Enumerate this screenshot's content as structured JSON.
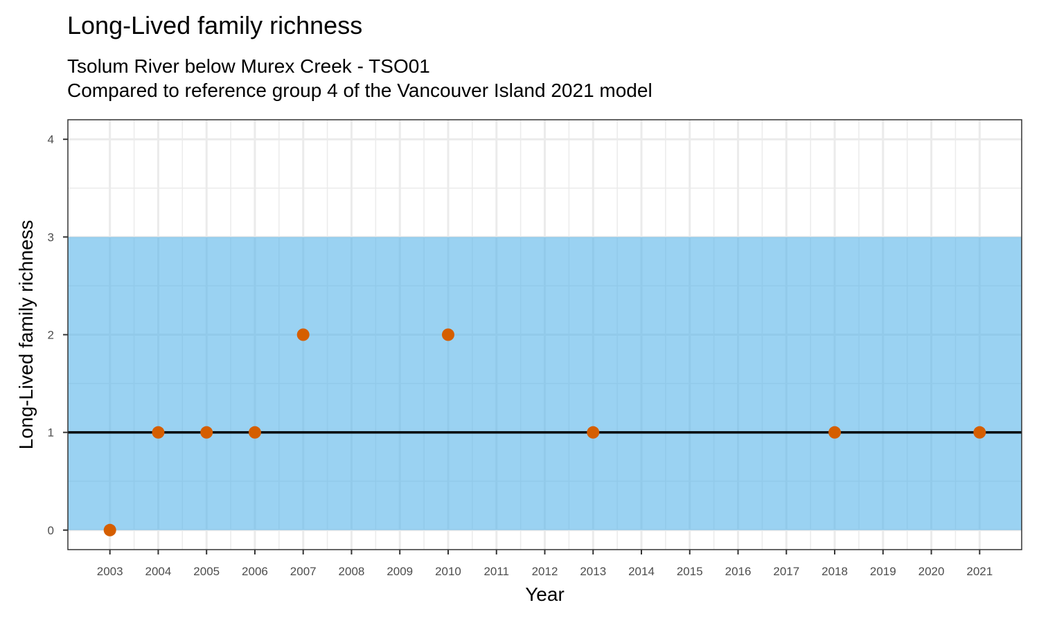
{
  "title": "Long-Lived family richness",
  "subtitle_line1": "Tsolum River below Murex Creek - TSO01",
  "subtitle_line2": "Compared to reference group 4 of the Vancouver Island 2021 model",
  "colors": {
    "band_fill": "#56B4E9",
    "point_fill": "#D55E00",
    "reference_line": "#000000",
    "grid": "#ebebeb",
    "panel_border": "#333333"
  },
  "chart_data": {
    "type": "scatter",
    "title": "Long-Lived family richness",
    "xlabel": "Year",
    "ylabel": "Long-Lived family richness",
    "x_ticks": [
      "2003",
      "2004",
      "2005",
      "2006",
      "2007",
      "2008",
      "2009",
      "2010",
      "2011",
      "2012",
      "2013",
      "2014",
      "2015",
      "2016",
      "2017",
      "2018",
      "2019",
      "2020",
      "2021"
    ],
    "y_ticks": [
      "0",
      "1",
      "2",
      "3",
      "4"
    ],
    "xlim": [
      2002.13,
      2021.87
    ],
    "ylim": [
      -0.2,
      4.2
    ],
    "reference_band": [
      0,
      3
    ],
    "reference_line": 1,
    "grid": true,
    "legend": "none",
    "series": [
      {
        "x": [
          2003,
          2004,
          2005,
          2006,
          2007,
          2010,
          2013,
          2018,
          2021
        ],
        "y": [
          0,
          1,
          1,
          1,
          2,
          2,
          1,
          1,
          1
        ]
      }
    ]
  }
}
